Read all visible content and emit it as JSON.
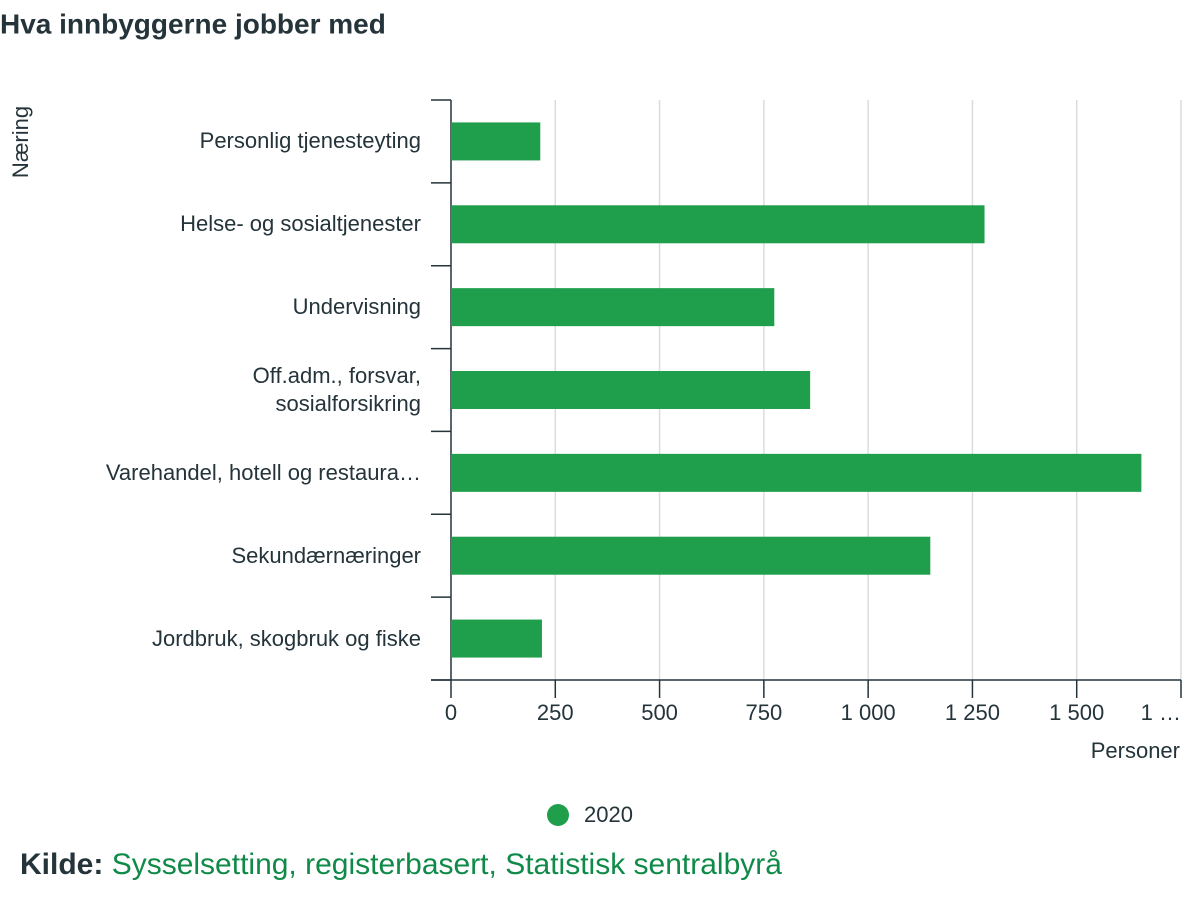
{
  "chart_data": {
    "type": "bar",
    "title": "Hva innbyggerne jobber med",
    "y_label": "Næring",
    "x_label": "Personer",
    "categories": [
      "Personlig tjenesteyting",
      "Helse- og sosialtjenester",
      "Undervisning",
      "Off.adm., forsvar, sosialforsikring",
      "Varehandel, hotell og restaura…",
      "Sekundærnæringer",
      "Jordbruk, skogbruk og fiske"
    ],
    "series": [
      {
        "name": "2020",
        "color": "#1f9e4b",
        "values": [
          214,
          1279,
          775,
          861,
          1655,
          1149,
          218
        ]
      }
    ],
    "xlim": [
      0,
      1750
    ],
    "xticks": [
      0,
      250,
      500,
      750,
      {
        "value": 1000,
        "label": "1 000"
      },
      {
        "value": 1250,
        "label": "1 250"
      },
      {
        "value": 1500,
        "label": "1 500"
      },
      {
        "value": 1750,
        "label": "1 …"
      }
    ],
    "grid": true
  },
  "source": {
    "label": "Kilde:",
    "text": "Sysselsetting, registerbasert, Statistisk sentralbyrå"
  }
}
